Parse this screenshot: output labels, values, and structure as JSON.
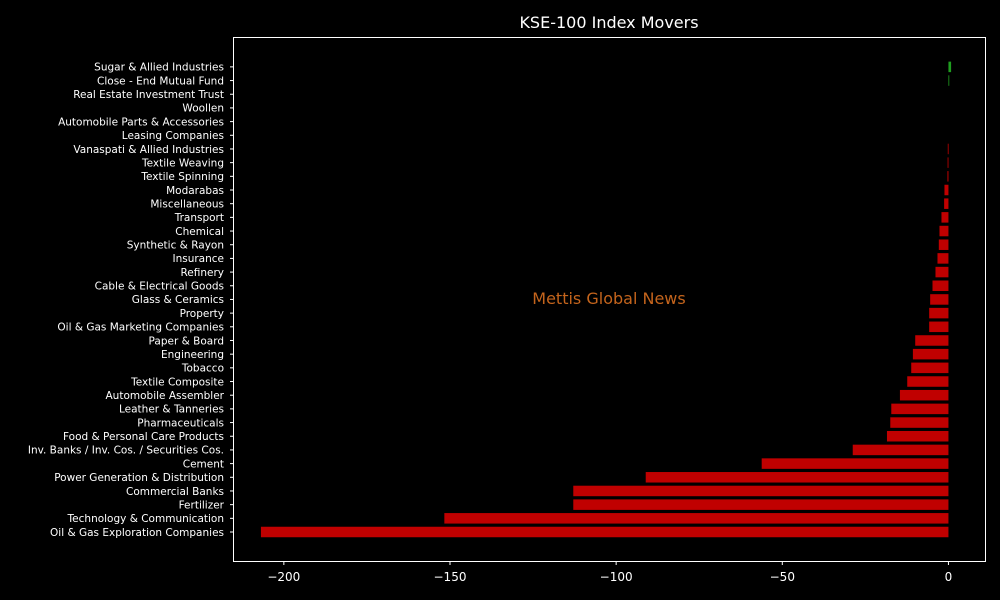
{
  "chart_data": {
    "type": "bar",
    "orientation": "horizontal",
    "title": "KSE-100 Index Movers",
    "watermark": "Mettis Global News",
    "xlabel": "",
    "ylabel": "",
    "xlim": [
      -215,
      11
    ],
    "xticks": [
      -200,
      -150,
      -100,
      -50,
      0
    ],
    "xtick_labels": [
      "−200",
      "−150",
      "−100",
      "−50",
      "0"
    ],
    "positive_color": "#1f9e1f",
    "negative_color": "#c00000",
    "background_color": "#000000",
    "grid": false,
    "categories": [
      "Oil & Gas Exploration Companies",
      "Technology & Communication",
      "Fertilizer",
      "Commercial Banks",
      "Power Generation & Distribution",
      "Cement",
      "Inv. Banks / Inv. Cos. / Securities Cos.",
      "Food & Personal Care Products",
      "Pharmaceuticals",
      "Leather & Tanneries",
      "Automobile Assembler",
      "Textile Composite",
      "Tobacco",
      "Engineering",
      "Paper & Board",
      "Oil & Gas Marketing Companies",
      "Property",
      "Glass & Ceramics",
      "Cable & Electrical Goods",
      "Refinery",
      "Insurance",
      "Synthetic & Rayon",
      "Chemical",
      "Transport",
      "Miscellaneous",
      "Modarabas",
      "Textile Spinning",
      "Textile Weaving",
      "Vanaspati & Allied Industries",
      "Leasing Companies",
      "Automobile Parts & Accessories",
      "Woollen",
      "Real Estate Investment Trust",
      "Close - End Mutual Fund",
      "Sugar & Allied Industries"
    ],
    "values": [
      -206.9,
      -151.7,
      -112.9,
      -112.9,
      -91.1,
      -56.2,
      -28.8,
      -18.5,
      -17.5,
      -17.2,
      -14.6,
      -12.4,
      -11.2,
      -10.7,
      -10.0,
      -5.8,
      -5.8,
      -5.5,
      -4.8,
      -3.9,
      -3.3,
      -2.9,
      -2.7,
      -2.1,
      -1.3,
      -1.2,
      -0.3,
      -0.25,
      -0.2,
      0,
      0,
      0,
      0,
      0.15,
      0.8
    ]
  }
}
